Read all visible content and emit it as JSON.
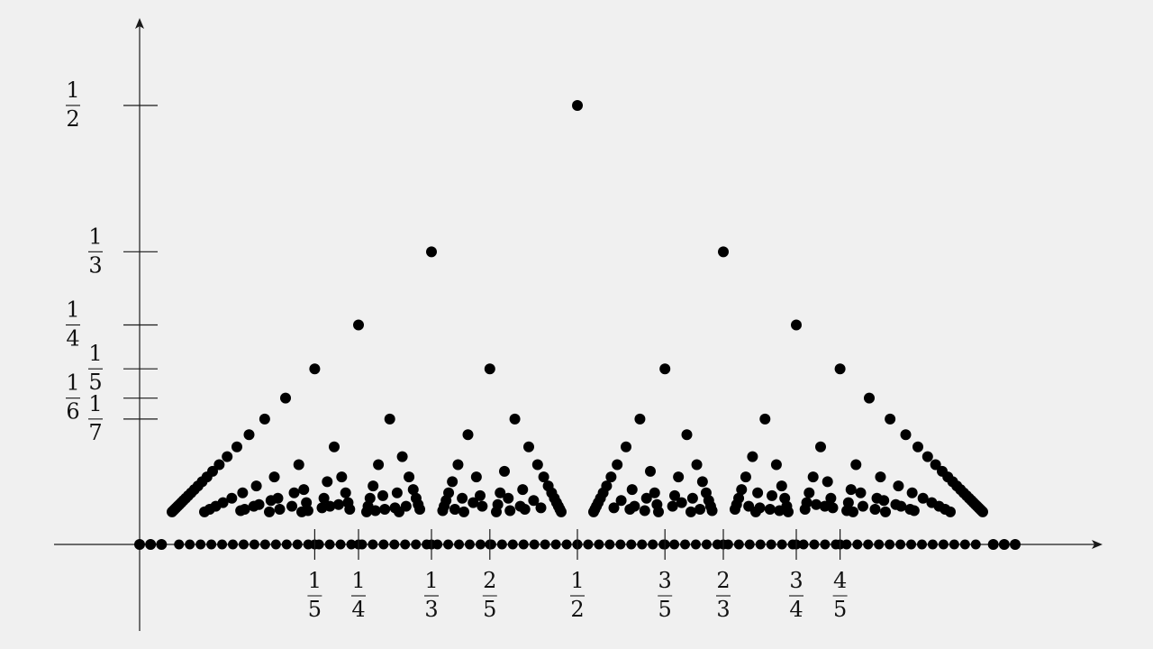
{
  "chart_data": {
    "type": "scatter",
    "function": "Thomae's function f(p/q) = 1/q on [0, 1]",
    "max_denominator": 50,
    "xlim": [
      0,
      1
    ],
    "ylim": [
      0,
      0.5
    ],
    "grid": false,
    "legend": "none",
    "x_ticks": [
      {
        "value": 0.2,
        "numerator": "1",
        "denominator": "5"
      },
      {
        "value": 0.25,
        "numerator": "1",
        "denominator": "4"
      },
      {
        "value": 0.3333333333,
        "numerator": "1",
        "denominator": "3"
      },
      {
        "value": 0.4,
        "numerator": "2",
        "denominator": "5"
      },
      {
        "value": 0.5,
        "numerator": "1",
        "denominator": "2"
      },
      {
        "value": 0.6,
        "numerator": "3",
        "denominator": "5"
      },
      {
        "value": 0.6666666667,
        "numerator": "2",
        "denominator": "3"
      },
      {
        "value": 0.75,
        "numerator": "3",
        "denominator": "4"
      },
      {
        "value": 0.8,
        "numerator": "4",
        "denominator": "5"
      }
    ],
    "y_ticks": [
      {
        "value": 0.5,
        "numerator": "1",
        "denominator": "2",
        "side": "outer"
      },
      {
        "value": 0.3333333333,
        "numerator": "1",
        "denominator": "3",
        "side": "inner"
      },
      {
        "value": 0.25,
        "numerator": "1",
        "denominator": "4",
        "side": "outer"
      },
      {
        "value": 0.2,
        "numerator": "1",
        "denominator": "5",
        "side": "inner"
      },
      {
        "value": 0.1666666667,
        "numerator": "1",
        "denominator": "6",
        "side": "outer"
      },
      {
        "value": 0.1428571429,
        "numerator": "1",
        "denominator": "7",
        "side": "inner"
      }
    ],
    "points_on_axis": "x values in [0, 1] plotted with y = 0 (irrationals)"
  }
}
